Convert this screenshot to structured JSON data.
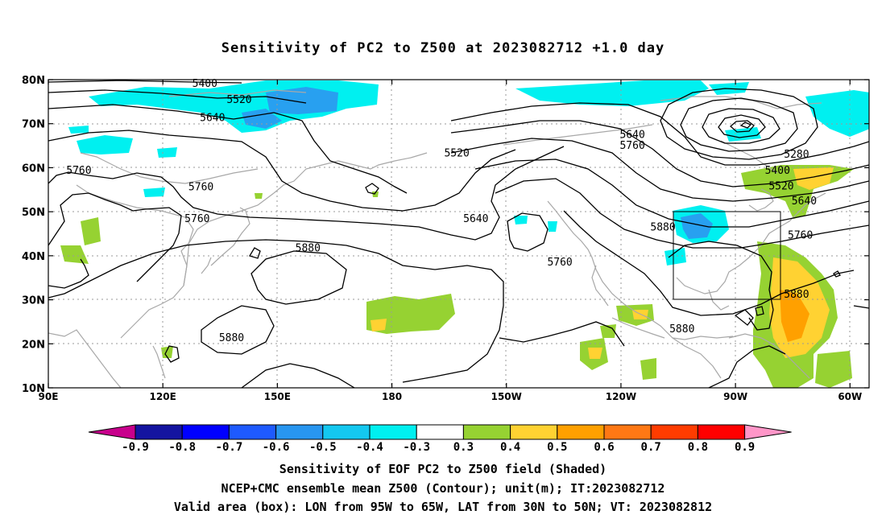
{
  "title": "Sensitivity of PC2 to Z500 at 2023082712 +1.0 day",
  "map": {
    "extent": {
      "lon_min": 90,
      "lon_max": 305,
      "lat_min": 10,
      "lat_max": 80
    },
    "lat_ticks": [
      {
        "lat": 80,
        "label": "80N"
      },
      {
        "lat": 70,
        "label": "70N"
      },
      {
        "lat": 60,
        "label": "60N"
      },
      {
        "lat": 50,
        "label": "50N"
      },
      {
        "lat": 40,
        "label": "40N"
      },
      {
        "lat": 30,
        "label": "30N"
      },
      {
        "lat": 20,
        "label": "20N"
      },
      {
        "lat": 10,
        "label": "10N"
      }
    ],
    "lon_ticks": [
      {
        "lon": 90,
        "label": "90E"
      },
      {
        "lon": 120,
        "label": "120E"
      },
      {
        "lon": 150,
        "label": "150E"
      },
      {
        "lon": 180,
        "label": "180"
      },
      {
        "lon": 210,
        "label": "150W"
      },
      {
        "lon": 240,
        "label": "120W"
      },
      {
        "lon": 270,
        "label": "90W"
      },
      {
        "lon": 300,
        "label": "60W"
      }
    ],
    "valid_box": {
      "lon_min": 265,
      "lon_max": 295,
      "lat_min": 30,
      "lat_max": 50
    },
    "contour_labels": [
      {
        "text": "5400",
        "lon": 131,
        "lat": 79.3
      },
      {
        "text": "5520",
        "lon": 140,
        "lat": 75.6
      },
      {
        "text": "5640",
        "lon": 133,
        "lat": 71.5
      },
      {
        "text": "5760",
        "lon": 98,
        "lat": 59.5
      },
      {
        "text": "5760",
        "lon": 130,
        "lat": 55.8
      },
      {
        "text": "5760",
        "lon": 129,
        "lat": 48.6
      },
      {
        "text": "5880",
        "lon": 158,
        "lat": 41.9
      },
      {
        "text": "5880",
        "lon": 138,
        "lat": 21.5
      },
      {
        "text": "5520",
        "lon": 197,
        "lat": 63.5
      },
      {
        "text": "5640",
        "lon": 202,
        "lat": 48.6
      },
      {
        "text": "5640",
        "lon": 243,
        "lat": 67.7
      },
      {
        "text": "5760",
        "lon": 243,
        "lat": 65.2
      },
      {
        "text": "5760",
        "lon": 224,
        "lat": 38.7
      },
      {
        "text": "5880",
        "lon": 251,
        "lat": 46.6
      },
      {
        "text": "5880",
        "lon": 256,
        "lat": 23.5
      },
      {
        "text": "5280",
        "lon": 286,
        "lat": 63.2
      },
      {
        "text": "5400",
        "lon": 281,
        "lat": 59.5
      },
      {
        "text": "5520",
        "lon": 282,
        "lat": 56.0
      },
      {
        "text": "5640",
        "lon": 288,
        "lat": 52.6
      },
      {
        "text": "5760",
        "lon": 287,
        "lat": 44.8
      },
      {
        "text": "5880",
        "lon": 286,
        "lat": 31.4
      }
    ]
  },
  "colorbar": {
    "colors": [
      "#c8008c",
      "#1414a0",
      "#0000ff",
      "#1e5aff",
      "#2896f0",
      "#14c8f0",
      "#00f0f0",
      "#ffffff",
      "#96d232",
      "#ffd232",
      "#ffa000",
      "#ff7814",
      "#ff3c00",
      "#ff0000",
      "#ff96c8"
    ],
    "labels": [
      "-0.9",
      "-0.8",
      "-0.7",
      "-0.6",
      "-0.5",
      "-0.4",
      "-0.3",
      "0.3",
      "0.4",
      "0.5",
      "0.6",
      "0.7",
      "0.8",
      "0.9"
    ]
  },
  "captions": {
    "line1": "Sensitivity of EOF PC2 to Z500 field (Shaded)",
    "line2": "NCEP+CMC ensemble mean Z500 (Contour); unit(m); IT:2023082712",
    "line3": "Valid area (box): LON from 95W to 65W, LAT from 30N to 50N; VT: 2023082812"
  },
  "colors": {
    "cyan": "#00f0f0",
    "blue": "#28a0f0",
    "green": "#96d232",
    "yellow": "#ffd232",
    "orange": "#ffa000",
    "coast": "#a8a8a8"
  }
}
